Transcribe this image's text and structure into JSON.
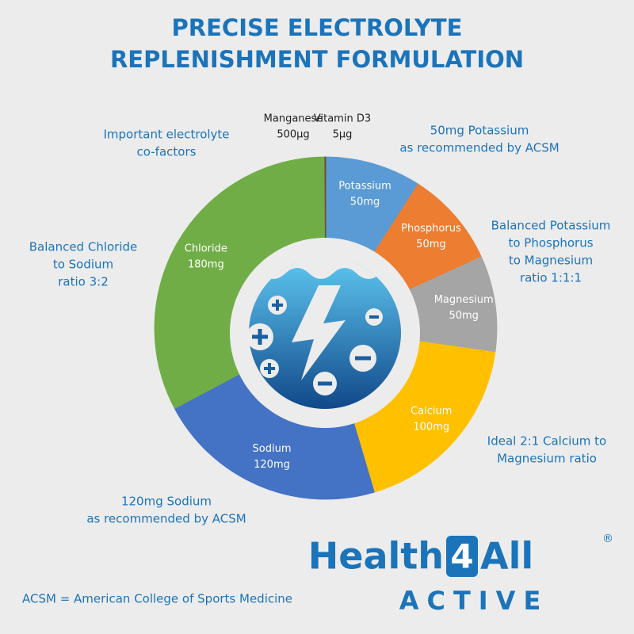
{
  "chart_data": {
    "type": "pie",
    "title": [
      "PRECISE ELECTROLYTE",
      "REPLENISHMENT FORMULATION"
    ],
    "categories": [
      "Potassium",
      "Phosphorus",
      "Magnesium",
      "Calcium",
      "Sodium",
      "Chloride",
      "Manganese",
      "Vitamin D3"
    ],
    "values": [
      50,
      50,
      50,
      100,
      120,
      180,
      0.5,
      0.005
    ],
    "value_labels": [
      "50mg",
      "50mg",
      "50mg",
      "100mg",
      "120mg",
      "180mg",
      "500µg",
      "5µg"
    ],
    "colors": [
      "#5b9bd5",
      "#ed7d31",
      "#a5a5a5",
      "#ffc000",
      "#4472c4",
      "#70ad47",
      "#7a4a2a",
      "#555555"
    ],
    "donut": true,
    "annotations": [
      [
        "Important electrolyte",
        "co-factors"
      ],
      [
        "50mg Potassium",
        "as recommended by ACSM"
      ],
      [
        "Balanced Chloride",
        "to Sodium",
        "ratio 3:2"
      ],
      [
        "Balanced Potassium",
        "to Phosphorus",
        "to Magnesium",
        "ratio 1:1:1"
      ],
      [
        "Ideal 2:1 Calcium to",
        "Magnesium ratio"
      ],
      [
        "120mg Sodium",
        "as recommended by ACSM"
      ]
    ],
    "footnote": "ACSM = American College of Sports Medicine",
    "logo": {
      "name": "Health",
      "number": "4",
      "suffix": "All",
      "mark": "®",
      "tagline": "ACTIVE"
    }
  }
}
